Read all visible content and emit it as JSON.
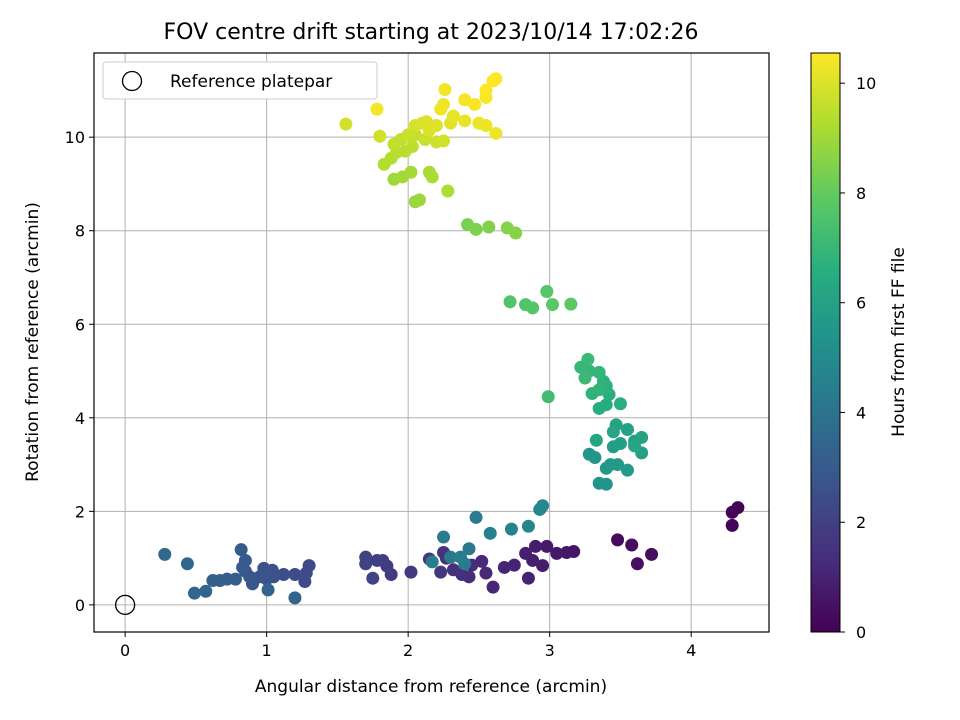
{
  "chart_data": {
    "type": "scatter",
    "title": "FOV centre drift starting at 2023/10/14 17:02:26",
    "xlabel": "Angular distance from reference (arcmin)",
    "ylabel": "Rotation from reference (arcmin)",
    "xlim": [
      -0.22,
      4.55
    ],
    "ylim": [
      -0.58,
      11.8
    ],
    "xticks": [
      0,
      1,
      2,
      3,
      4
    ],
    "yticks": [
      0,
      2,
      4,
      6,
      8,
      10
    ],
    "grid": true,
    "colormap": "viridis",
    "colorbar": {
      "label": "Hours from first FF file",
      "range": [
        0,
        10.55
      ],
      "ticks": [
        0,
        2,
        4,
        6,
        8,
        10
      ]
    },
    "legend": {
      "label": "Reference platepar",
      "placement": "upper-left"
    },
    "reference_point": {
      "x": 0,
      "y": 0
    },
    "points": [
      {
        "x": 4.29,
        "y": 1.98,
        "c": 0.05
      },
      {
        "x": 4.33,
        "y": 2.08,
        "c": 0.08
      },
      {
        "x": 4.29,
        "y": 1.7,
        "c": 0.1
      },
      {
        "x": 3.48,
        "y": 1.39,
        "c": 0.3
      },
      {
        "x": 3.58,
        "y": 1.28,
        "c": 0.35
      },
      {
        "x": 3.72,
        "y": 1.08,
        "c": 0.4
      },
      {
        "x": 3.62,
        "y": 0.88,
        "c": 0.45
      },
      {
        "x": 3.17,
        "y": 1.14,
        "c": 0.6
      },
      {
        "x": 3.12,
        "y": 1.12,
        "c": 0.65
      },
      {
        "x": 3.05,
        "y": 1.1,
        "c": 0.7
      },
      {
        "x": 2.98,
        "y": 1.25,
        "c": 0.75
      },
      {
        "x": 2.9,
        "y": 1.25,
        "c": 0.8
      },
      {
        "x": 2.95,
        "y": 0.84,
        "c": 0.85
      },
      {
        "x": 2.88,
        "y": 0.95,
        "c": 0.9
      },
      {
        "x": 2.83,
        "y": 1.1,
        "c": 0.95
      },
      {
        "x": 2.85,
        "y": 0.57,
        "c": 1.0
      },
      {
        "x": 2.75,
        "y": 0.85,
        "c": 1.05
      },
      {
        "x": 2.68,
        "y": 0.8,
        "c": 1.1
      },
      {
        "x": 2.6,
        "y": 0.38,
        "c": 1.15
      },
      {
        "x": 2.55,
        "y": 0.68,
        "c": 1.2
      },
      {
        "x": 2.52,
        "y": 0.93,
        "c": 1.25
      },
      {
        "x": 2.45,
        "y": 0.85,
        "c": 1.3
      },
      {
        "x": 2.43,
        "y": 0.6,
        "c": 1.35
      },
      {
        "x": 2.38,
        "y": 0.65,
        "c": 1.4
      },
      {
        "x": 2.32,
        "y": 0.75,
        "c": 1.45
      },
      {
        "x": 2.27,
        "y": 1.0,
        "c": 1.5
      },
      {
        "x": 2.25,
        "y": 1.12,
        "c": 1.55
      },
      {
        "x": 2.15,
        "y": 0.98,
        "c": 1.6
      },
      {
        "x": 2.23,
        "y": 0.7,
        "c": 1.65
      },
      {
        "x": 2.02,
        "y": 0.7,
        "c": 1.7
      },
      {
        "x": 1.88,
        "y": 0.65,
        "c": 1.8
      },
      {
        "x": 1.85,
        "y": 0.83,
        "c": 1.85
      },
      {
        "x": 1.82,
        "y": 0.95,
        "c": 1.9
      },
      {
        "x": 1.78,
        "y": 0.95,
        "c": 1.95
      },
      {
        "x": 1.7,
        "y": 1.02,
        "c": 2.0
      },
      {
        "x": 1.7,
        "y": 0.88,
        "c": 2.05
      },
      {
        "x": 1.75,
        "y": 0.57,
        "c": 2.1
      },
      {
        "x": 1.3,
        "y": 0.84,
        "c": 2.3
      },
      {
        "x": 1.28,
        "y": 0.68,
        "c": 2.35
      },
      {
        "x": 1.27,
        "y": 0.5,
        "c": 2.4
      },
      {
        "x": 1.2,
        "y": 0.65,
        "c": 2.45
      },
      {
        "x": 1.12,
        "y": 0.65,
        "c": 2.5
      },
      {
        "x": 1.05,
        "y": 0.6,
        "c": 2.55
      },
      {
        "x": 1.04,
        "y": 0.74,
        "c": 2.6
      },
      {
        "x": 0.98,
        "y": 0.78,
        "c": 2.65
      },
      {
        "x": 1.0,
        "y": 0.55,
        "c": 2.7
      },
      {
        "x": 0.95,
        "y": 0.6,
        "c": 2.75
      },
      {
        "x": 0.9,
        "y": 0.45,
        "c": 2.8
      },
      {
        "x": 0.88,
        "y": 0.6,
        "c": 2.85
      },
      {
        "x": 0.85,
        "y": 0.72,
        "c": 2.9
      },
      {
        "x": 0.85,
        "y": 0.95,
        "c": 2.95
      },
      {
        "x": 0.83,
        "y": 0.8,
        "c": 3.0
      },
      {
        "x": 0.82,
        "y": 1.18,
        "c": 3.05
      },
      {
        "x": 0.78,
        "y": 0.55,
        "c": 3.1
      },
      {
        "x": 0.72,
        "y": 0.55,
        "c": 3.15
      },
      {
        "x": 0.67,
        "y": 0.52,
        "c": 3.2
      },
      {
        "x": 0.62,
        "y": 0.52,
        "c": 3.25
      },
      {
        "x": 1.01,
        "y": 0.32,
        "c": 3.3
      },
      {
        "x": 1.2,
        "y": 0.15,
        "c": 3.35
      },
      {
        "x": 0.57,
        "y": 0.29,
        "c": 3.4
      },
      {
        "x": 0.49,
        "y": 0.25,
        "c": 3.45
      },
      {
        "x": 0.44,
        "y": 0.88,
        "c": 3.5
      },
      {
        "x": 0.28,
        "y": 1.08,
        "c": 3.55
      },
      {
        "x": 2.43,
        "y": 1.2,
        "c": 4.2
      },
      {
        "x": 2.4,
        "y": 0.88,
        "c": 4.25
      },
      {
        "x": 2.3,
        "y": 1.02,
        "c": 4.3
      },
      {
        "x": 2.25,
        "y": 1.45,
        "c": 4.35
      },
      {
        "x": 2.48,
        "y": 1.87,
        "c": 4.4
      },
      {
        "x": 2.17,
        "y": 0.92,
        "c": 4.45
      },
      {
        "x": 2.37,
        "y": 1.02,
        "c": 4.5
      },
      {
        "x": 2.58,
        "y": 1.53,
        "c": 4.6
      },
      {
        "x": 2.73,
        "y": 1.62,
        "c": 4.7
      },
      {
        "x": 2.85,
        "y": 1.68,
        "c": 4.8
      },
      {
        "x": 2.95,
        "y": 2.12,
        "c": 4.9
      },
      {
        "x": 2.93,
        "y": 2.04,
        "c": 4.95
      },
      {
        "x": 3.35,
        "y": 2.6,
        "c": 5.4
      },
      {
        "x": 3.4,
        "y": 2.58,
        "c": 5.45
      },
      {
        "x": 3.28,
        "y": 3.22,
        "c": 5.5
      },
      {
        "x": 3.32,
        "y": 3.15,
        "c": 5.55
      },
      {
        "x": 3.4,
        "y": 2.92,
        "c": 5.6
      },
      {
        "x": 3.43,
        "y": 3.0,
        "c": 5.65
      },
      {
        "x": 3.48,
        "y": 3.0,
        "c": 5.7
      },
      {
        "x": 3.55,
        "y": 2.88,
        "c": 5.75
      },
      {
        "x": 3.45,
        "y": 3.38,
        "c": 5.8
      },
      {
        "x": 3.5,
        "y": 3.45,
        "c": 5.85
      },
      {
        "x": 3.6,
        "y": 3.5,
        "c": 5.9
      },
      {
        "x": 3.65,
        "y": 3.25,
        "c": 5.95
      },
      {
        "x": 3.65,
        "y": 3.58,
        "c": 6.0
      },
      {
        "x": 3.55,
        "y": 3.75,
        "c": 6.05
      },
      {
        "x": 3.47,
        "y": 3.85,
        "c": 6.1
      },
      {
        "x": 3.45,
        "y": 3.7,
        "c": 6.15
      },
      {
        "x": 3.33,
        "y": 3.52,
        "c": 6.2
      },
      {
        "x": 3.6,
        "y": 3.4,
        "c": 6.25
      },
      {
        "x": 3.35,
        "y": 4.2,
        "c": 6.5
      },
      {
        "x": 3.4,
        "y": 4.28,
        "c": 6.55
      },
      {
        "x": 3.5,
        "y": 4.3,
        "c": 6.6
      },
      {
        "x": 3.42,
        "y": 4.5,
        "c": 6.65
      },
      {
        "x": 3.4,
        "y": 4.68,
        "c": 6.7
      },
      {
        "x": 3.38,
        "y": 4.78,
        "c": 6.75
      },
      {
        "x": 3.3,
        "y": 4.52,
        "c": 6.8
      },
      {
        "x": 3.35,
        "y": 4.6,
        "c": 6.85
      },
      {
        "x": 3.35,
        "y": 4.97,
        "c": 6.9
      },
      {
        "x": 3.28,
        "y": 5.0,
        "c": 6.95
      },
      {
        "x": 3.22,
        "y": 5.08,
        "c": 7.0
      },
      {
        "x": 3.27,
        "y": 5.25,
        "c": 7.05
      },
      {
        "x": 3.25,
        "y": 4.85,
        "c": 7.1
      },
      {
        "x": 2.99,
        "y": 4.45,
        "c": 7.2
      },
      {
        "x": 2.72,
        "y": 6.48,
        "c": 7.6
      },
      {
        "x": 2.83,
        "y": 6.42,
        "c": 7.65
      },
      {
        "x": 2.88,
        "y": 6.35,
        "c": 7.7
      },
      {
        "x": 2.98,
        "y": 6.7,
        "c": 7.75
      },
      {
        "x": 3.02,
        "y": 6.42,
        "c": 7.8
      },
      {
        "x": 3.15,
        "y": 6.43,
        "c": 7.85
      },
      {
        "x": 2.42,
        "y": 8.13,
        "c": 8.4
      },
      {
        "x": 2.48,
        "y": 8.03,
        "c": 8.45
      },
      {
        "x": 2.57,
        "y": 8.08,
        "c": 8.5
      },
      {
        "x": 2.7,
        "y": 8.06,
        "c": 8.55
      },
      {
        "x": 2.76,
        "y": 7.95,
        "c": 8.6
      },
      {
        "x": 2.05,
        "y": 8.62,
        "c": 8.9
      },
      {
        "x": 2.08,
        "y": 8.66,
        "c": 8.95
      },
      {
        "x": 1.9,
        "y": 9.1,
        "c": 9.0
      },
      {
        "x": 1.96,
        "y": 9.15,
        "c": 9.05
      },
      {
        "x": 2.02,
        "y": 9.25,
        "c": 9.1
      },
      {
        "x": 2.15,
        "y": 9.25,
        "c": 9.15
      },
      {
        "x": 2.17,
        "y": 9.15,
        "c": 9.2
      },
      {
        "x": 2.28,
        "y": 8.85,
        "c": 9.25
      },
      {
        "x": 1.83,
        "y": 9.42,
        "c": 9.3
      },
      {
        "x": 1.88,
        "y": 9.55,
        "c": 9.35
      },
      {
        "x": 1.92,
        "y": 9.68,
        "c": 9.4
      },
      {
        "x": 1.98,
        "y": 9.7,
        "c": 9.45
      },
      {
        "x": 2.03,
        "y": 9.8,
        "c": 9.5
      },
      {
        "x": 1.9,
        "y": 9.85,
        "c": 9.55
      },
      {
        "x": 1.95,
        "y": 9.95,
        "c": 9.6
      },
      {
        "x": 2.05,
        "y": 10.05,
        "c": 9.65
      },
      {
        "x": 2.12,
        "y": 9.95,
        "c": 9.7
      },
      {
        "x": 2.2,
        "y": 9.9,
        "c": 9.75
      },
      {
        "x": 2.25,
        "y": 9.92,
        "c": 9.8
      },
      {
        "x": 1.8,
        "y": 10.02,
        "c": 9.8
      },
      {
        "x": 1.56,
        "y": 10.28,
        "c": 9.85
      },
      {
        "x": 2.05,
        "y": 10.25,
        "c": 9.9
      },
      {
        "x": 2.1,
        "y": 10.3,
        "c": 9.95
      },
      {
        "x": 2.15,
        "y": 10.15,
        "c": 10.0
      },
      {
        "x": 2.2,
        "y": 10.25,
        "c": 10.05
      },
      {
        "x": 2.3,
        "y": 10.3,
        "c": 10.1
      },
      {
        "x": 2.32,
        "y": 10.45,
        "c": 10.15
      },
      {
        "x": 2.4,
        "y": 10.35,
        "c": 10.2
      },
      {
        "x": 2.5,
        "y": 10.3,
        "c": 10.25
      },
      {
        "x": 2.55,
        "y": 10.25,
        "c": 10.3
      },
      {
        "x": 2.62,
        "y": 10.08,
        "c": 10.3
      },
      {
        "x": 2.23,
        "y": 10.6,
        "c": 10.35
      },
      {
        "x": 2.25,
        "y": 10.7,
        "c": 10.35
      },
      {
        "x": 2.26,
        "y": 11.02,
        "c": 10.4
      },
      {
        "x": 2.4,
        "y": 10.8,
        "c": 10.4
      },
      {
        "x": 2.47,
        "y": 10.7,
        "c": 10.45
      },
      {
        "x": 2.55,
        "y": 10.85,
        "c": 10.45
      },
      {
        "x": 2.55,
        "y": 11.0,
        "c": 10.5
      },
      {
        "x": 2.6,
        "y": 11.2,
        "c": 10.5
      },
      {
        "x": 2.62,
        "y": 11.25,
        "c": 10.52
      },
      {
        "x": 1.78,
        "y": 10.6,
        "c": 10.4
      },
      {
        "x": 2.0,
        "y": 10.05,
        "c": 9.7
      },
      {
        "x": 2.13,
        "y": 10.33,
        "c": 10.0
      }
    ]
  }
}
